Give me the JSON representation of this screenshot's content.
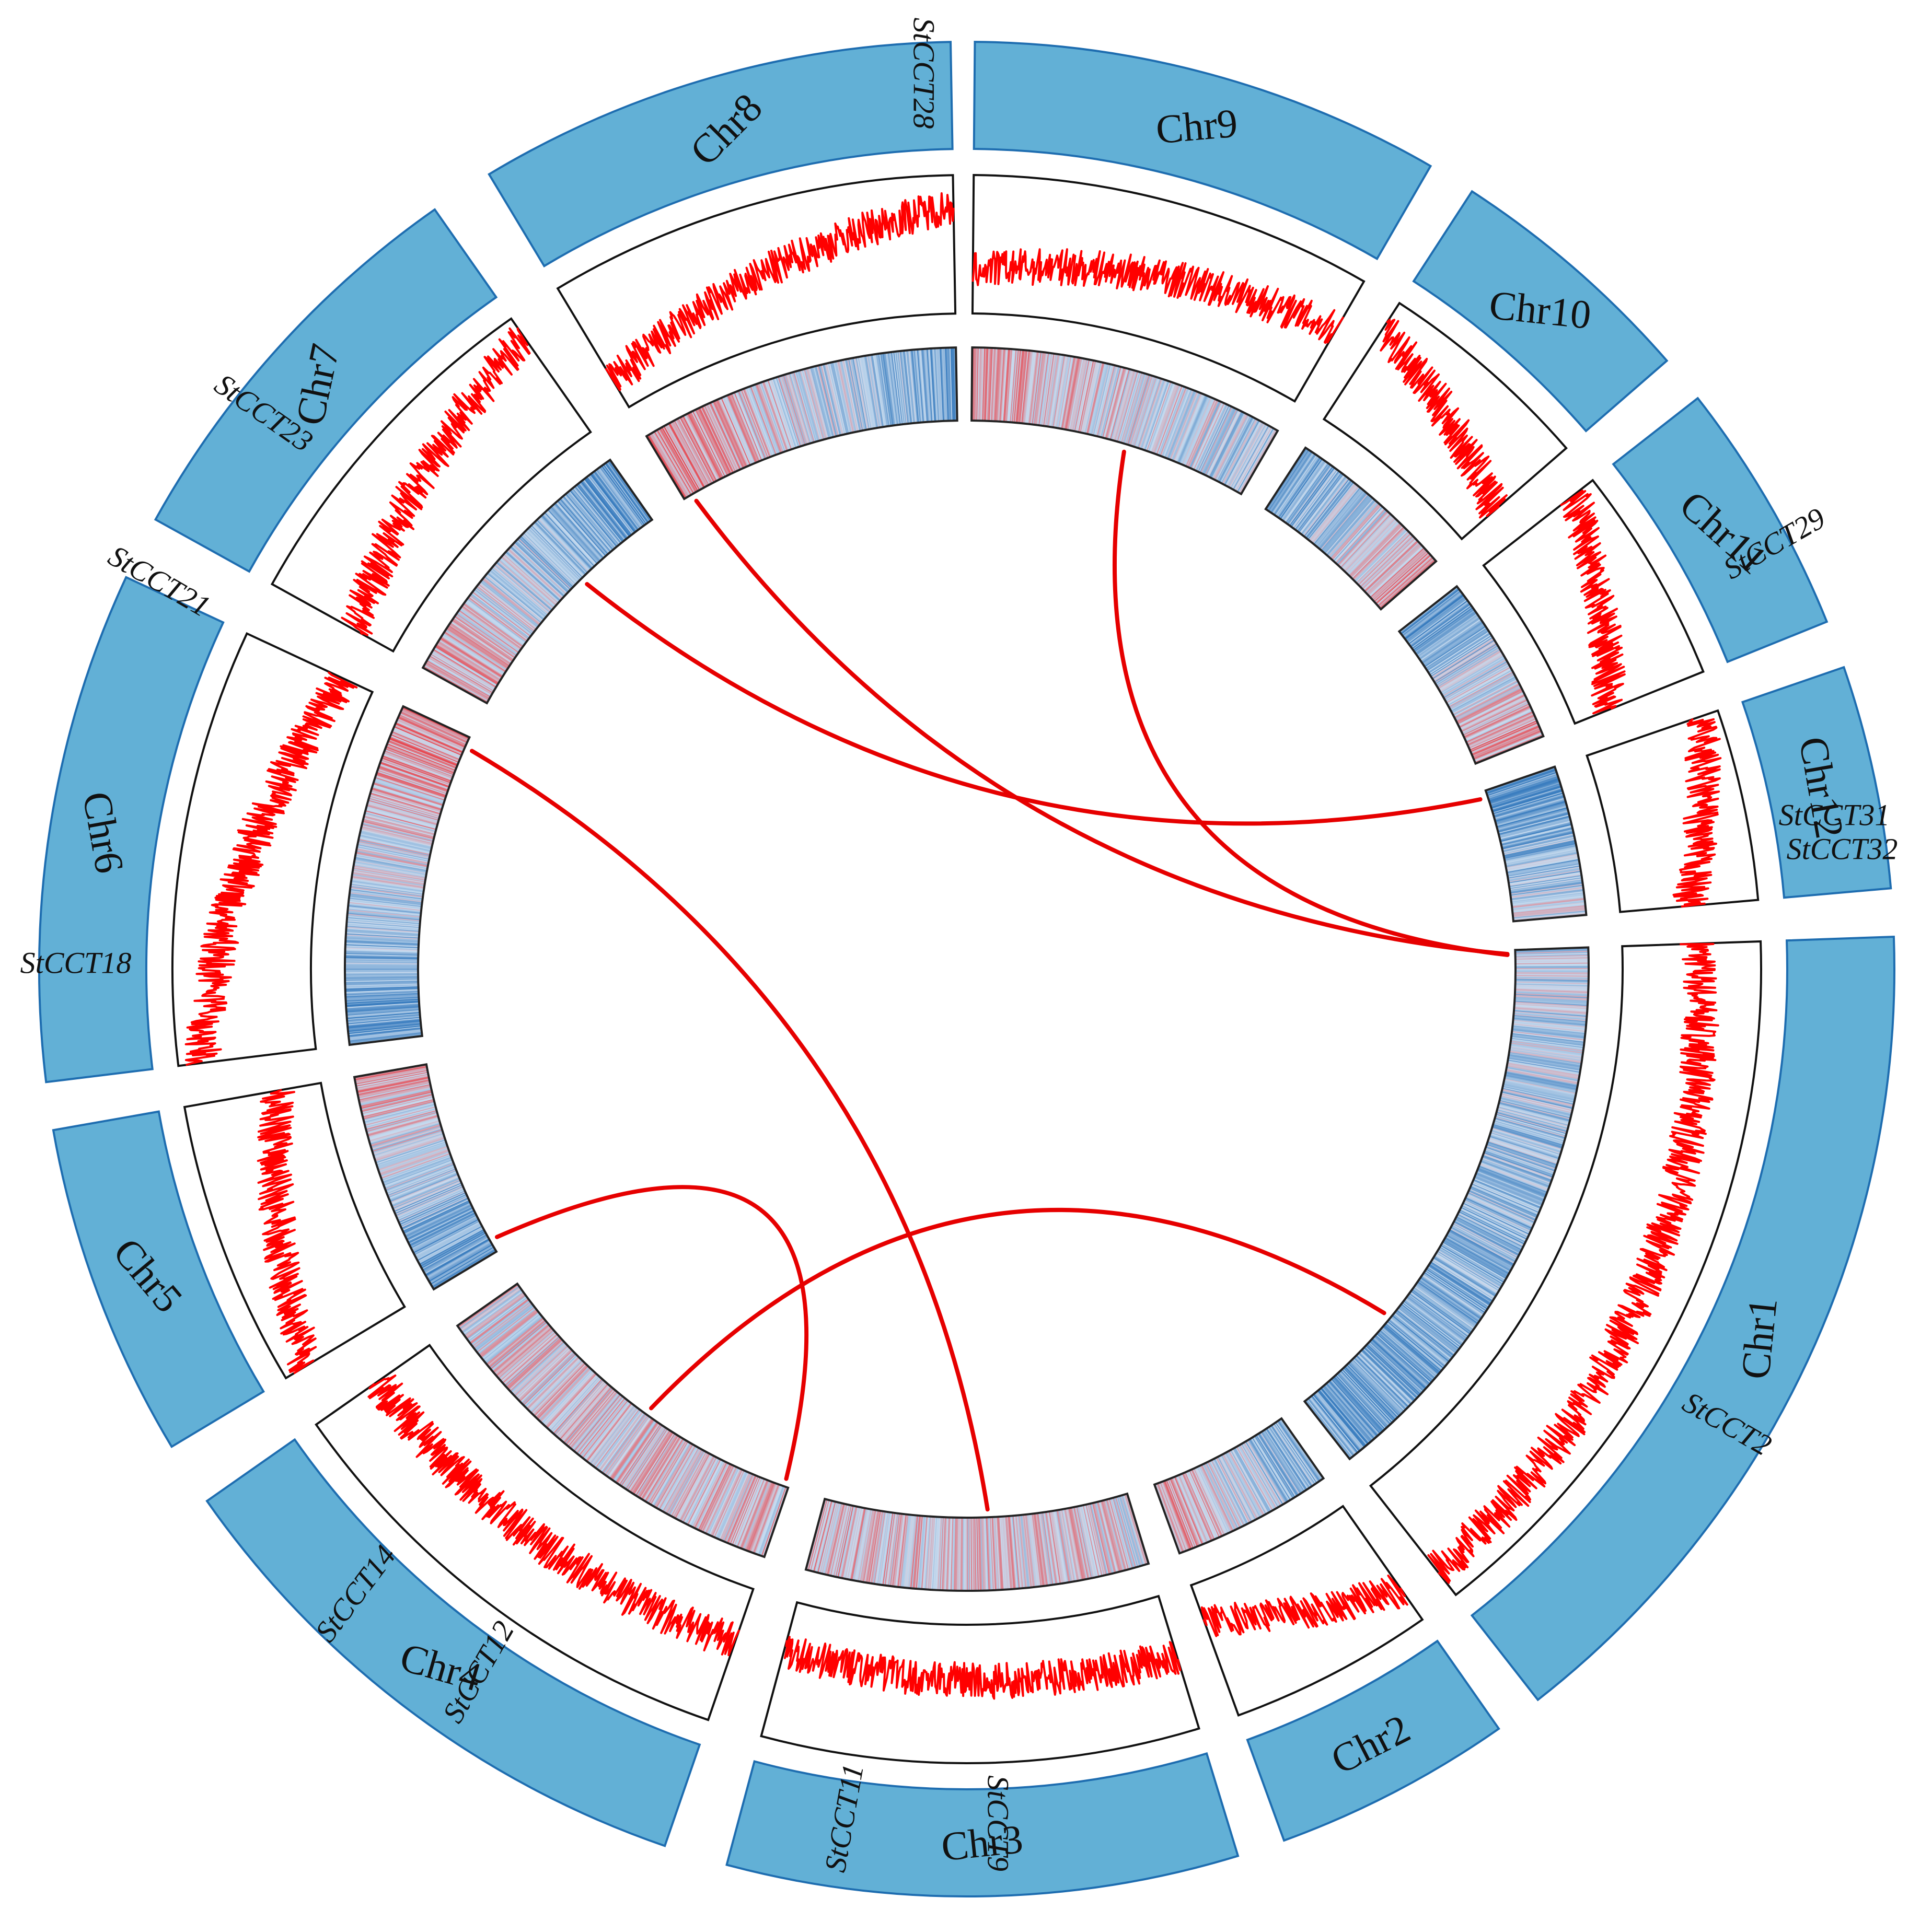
{
  "diagram": {
    "type": "circos",
    "chromosome_color": "#62b0d6",
    "chromosome_border_color": "#1e6db0",
    "density_line_color": "#ff0000",
    "link_color": "#e60000",
    "heatmap_colors": [
      "#3a7dbf",
      "#c7dbef",
      "#e8454d"
    ],
    "chromosomes": [
      {
        "id": "Chr1",
        "label": "Chr1"
      },
      {
        "id": "Chr2",
        "label": "Chr2"
      },
      {
        "id": "Chr3",
        "label": "Chr3"
      },
      {
        "id": "Chr4",
        "label": "Chr4"
      },
      {
        "id": "Chr5",
        "label": "Chr5"
      },
      {
        "id": "Chr6",
        "label": "Chr6"
      },
      {
        "id": "Chr7",
        "label": "Chr7"
      },
      {
        "id": "Chr8",
        "label": "Chr8"
      },
      {
        "id": "Chr9",
        "label": "Chr9"
      },
      {
        "id": "Chr10",
        "label": "Chr10"
      },
      {
        "id": "Chr11",
        "label": "Chr11"
      },
      {
        "id": "Chr12",
        "label": "Chr12"
      }
    ],
    "genes": [
      {
        "label": "StCCT2",
        "chr": "Chr1"
      },
      {
        "label": "StCCT9",
        "chr": "Chr3"
      },
      {
        "label": "StCCT11",
        "chr": "Chr4"
      },
      {
        "label": "StCCT12",
        "chr": "Chr4"
      },
      {
        "label": "StCCT14",
        "chr": "Chr5"
      },
      {
        "label": "StCCT18",
        "chr": "Chr6"
      },
      {
        "label": "StCCT21",
        "chr": "Chr7"
      },
      {
        "label": "StCCT23",
        "chr": "Chr8"
      },
      {
        "label": "StCCT28",
        "chr": "Chr9"
      },
      {
        "label": "StCCT29",
        "chr": "Chr12"
      },
      {
        "label": "StCCT31",
        "chr": "Chr12"
      },
      {
        "label": "StCCT32",
        "chr": "Chr12"
      }
    ],
    "links": [
      {
        "from": "StCCT28",
        "to": "StCCT32"
      },
      {
        "from": "StCCT23",
        "to": "StCCT31"
      },
      {
        "from": "StCCT21",
        "to": "StCCT29"
      },
      {
        "from": "StCCT18",
        "to": "StCCT9"
      },
      {
        "from": "StCCT14",
        "to": "StCCT11"
      },
      {
        "from": "StCCT12",
        "to": "StCCT2"
      }
    ]
  }
}
